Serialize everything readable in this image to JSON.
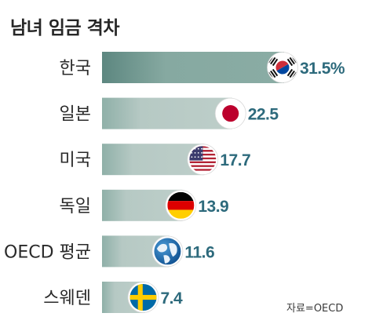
{
  "chart_data": {
    "type": "bar",
    "orientation": "horizontal",
    "title": "남녀 임금 격차",
    "categories": [
      "한국",
      "일본",
      "미국",
      "독일",
      "OECD 평균",
      "스웨덴"
    ],
    "values": [
      31.5,
      22.5,
      17.7,
      13.9,
      11.6,
      7.4
    ],
    "value_labels": [
      "31.5%",
      "22.5",
      "17.7",
      "13.9",
      "11.6",
      "7.4"
    ],
    "markers": [
      "south-korea-flag-icon",
      "japan-flag-icon",
      "usa-flag-icon",
      "germany-flag-icon",
      "globe-icon",
      "sweden-flag-icon"
    ],
    "xlim": [
      0,
      31.5
    ],
    "grid": false,
    "legend": "none",
    "source": "자료=OECD",
    "colors": {
      "bar_top": "#86a9a1",
      "bar_other": "#b6c9c4",
      "value_text": "#2d6a7c",
      "category_text": "#2a2a2a"
    }
  }
}
